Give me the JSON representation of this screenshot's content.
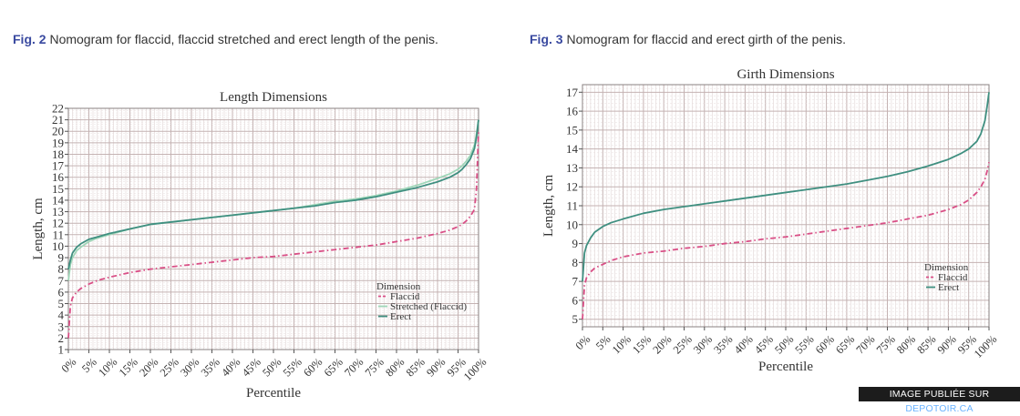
{
  "fig2": {
    "caption_label": "Fig. 2",
    "caption_text": "Nomogram for flaccid, flaccid stretched and erect length of the penis.",
    "chart_data": {
      "type": "line",
      "title": "Length Dimensions",
      "xlabel": "Percentile",
      "ylabel": "Length, cm",
      "ylim": [
        1,
        22
      ],
      "xlim": [
        0,
        100
      ],
      "yticks": [
        1,
        2,
        3,
        4,
        5,
        6,
        7,
        8,
        9,
        10,
        11,
        12,
        13,
        14,
        15,
        16,
        17,
        18,
        19,
        20,
        21,
        22
      ],
      "xticks": [
        "0%",
        "5%",
        "10%",
        "15%",
        "20%",
        "25%",
        "30%",
        "35%",
        "40%",
        "45%",
        "50%",
        "55%",
        "60%",
        "65%",
        "70%",
        "75%",
        "80%",
        "85%",
        "90%",
        "95%",
        "100%"
      ],
      "grid": true,
      "legend_title": "Dimension",
      "legend_position": "right",
      "x": [
        0,
        0.5,
        1,
        2,
        3,
        5,
        7,
        10,
        15,
        20,
        25,
        30,
        35,
        40,
        45,
        50,
        55,
        60,
        65,
        70,
        75,
        80,
        85,
        90,
        93,
        95,
        96,
        97,
        98,
        99,
        99.5,
        100
      ],
      "series": [
        {
          "name": "Flaccid",
          "color": "#d94f86",
          "style": "dashed",
          "values": [
            2.0,
            4.8,
            5.5,
            6.0,
            6.3,
            6.7,
            7.0,
            7.3,
            7.7,
            8.0,
            8.2,
            8.4,
            8.6,
            8.8,
            9.0,
            9.1,
            9.3,
            9.5,
            9.7,
            9.9,
            10.1,
            10.4,
            10.7,
            11.1,
            11.4,
            11.7,
            11.9,
            12.2,
            12.6,
            13.2,
            15.0,
            20.0
          ]
        },
        {
          "name": "Stretched (Flaccid)",
          "color": "#9fd6b8",
          "style": "solid",
          "values": [
            7.0,
            8.4,
            9.0,
            9.6,
            9.9,
            10.4,
            10.7,
            11.0,
            11.5,
            11.9,
            12.1,
            12.3,
            12.5,
            12.7,
            12.9,
            13.1,
            13.3,
            13.6,
            13.9,
            14.1,
            14.4,
            14.8,
            15.3,
            15.9,
            16.3,
            16.7,
            17.0,
            17.4,
            17.9,
            18.8,
            19.8,
            21.0
          ]
        },
        {
          "name": "Erect",
          "color": "#3f8f80",
          "style": "solid",
          "values": [
            8.0,
            8.8,
            9.4,
            9.9,
            10.2,
            10.6,
            10.8,
            11.1,
            11.5,
            11.9,
            12.1,
            12.3,
            12.5,
            12.7,
            12.9,
            13.1,
            13.3,
            13.5,
            13.8,
            14.0,
            14.3,
            14.7,
            15.1,
            15.6,
            16.0,
            16.4,
            16.7,
            17.1,
            17.6,
            18.5,
            19.5,
            21.0
          ]
        }
      ]
    }
  },
  "fig3": {
    "caption_label": "Fig. 3",
    "caption_text": "Nomogram for flaccid and erect girth of the penis.",
    "chart_data": {
      "type": "line",
      "title": "Girth Dimensions",
      "xlabel": "Percentile",
      "ylabel": "Length, cm",
      "ylim": [
        4.6,
        17.4
      ],
      "xlim": [
        0,
        100
      ],
      "yticks": [
        5,
        6,
        7,
        8,
        9,
        10,
        11,
        12,
        13,
        14,
        15,
        16,
        17
      ],
      "xticks": [
        "0%",
        "5%",
        "10%",
        "15%",
        "20%",
        "25%",
        "30%",
        "35%",
        "40%",
        "45%",
        "50%",
        "55%",
        "60%",
        "65%",
        "70%",
        "75%",
        "80%",
        "85%",
        "90%",
        "95%",
        "100%"
      ],
      "grid": true,
      "legend_title": "Dimension",
      "legend_position": "right",
      "x": [
        0,
        0.5,
        1,
        2,
        3,
        5,
        7,
        10,
        15,
        20,
        25,
        30,
        35,
        40,
        45,
        50,
        55,
        60,
        65,
        70,
        75,
        80,
        85,
        90,
        93,
        95,
        96,
        97,
        98,
        99,
        99.5,
        100
      ],
      "series": [
        {
          "name": "Flaccid",
          "color": "#d94f86",
          "style": "dashed",
          "values": [
            5.0,
            6.8,
            7.2,
            7.5,
            7.7,
            7.9,
            8.1,
            8.3,
            8.5,
            8.6,
            8.75,
            8.85,
            9.0,
            9.1,
            9.25,
            9.35,
            9.5,
            9.65,
            9.8,
            9.95,
            10.1,
            10.3,
            10.5,
            10.8,
            11.05,
            11.3,
            11.5,
            11.7,
            12.0,
            12.4,
            12.8,
            13.3
          ]
        },
        {
          "name": "Erect",
          "color": "#3f8f80",
          "style": "solid",
          "values": [
            7.0,
            8.5,
            8.9,
            9.3,
            9.6,
            9.9,
            10.1,
            10.3,
            10.6,
            10.8,
            10.95,
            11.1,
            11.25,
            11.4,
            11.55,
            11.7,
            11.85,
            12.0,
            12.15,
            12.35,
            12.55,
            12.8,
            13.1,
            13.45,
            13.75,
            14.0,
            14.2,
            14.4,
            14.8,
            15.5,
            16.2,
            17.0
          ]
        }
      ]
    }
  },
  "watermark": {
    "prefix": "IMAGE PUBLIÉE SUR ",
    "site": "DEPOTOIR.CA"
  }
}
